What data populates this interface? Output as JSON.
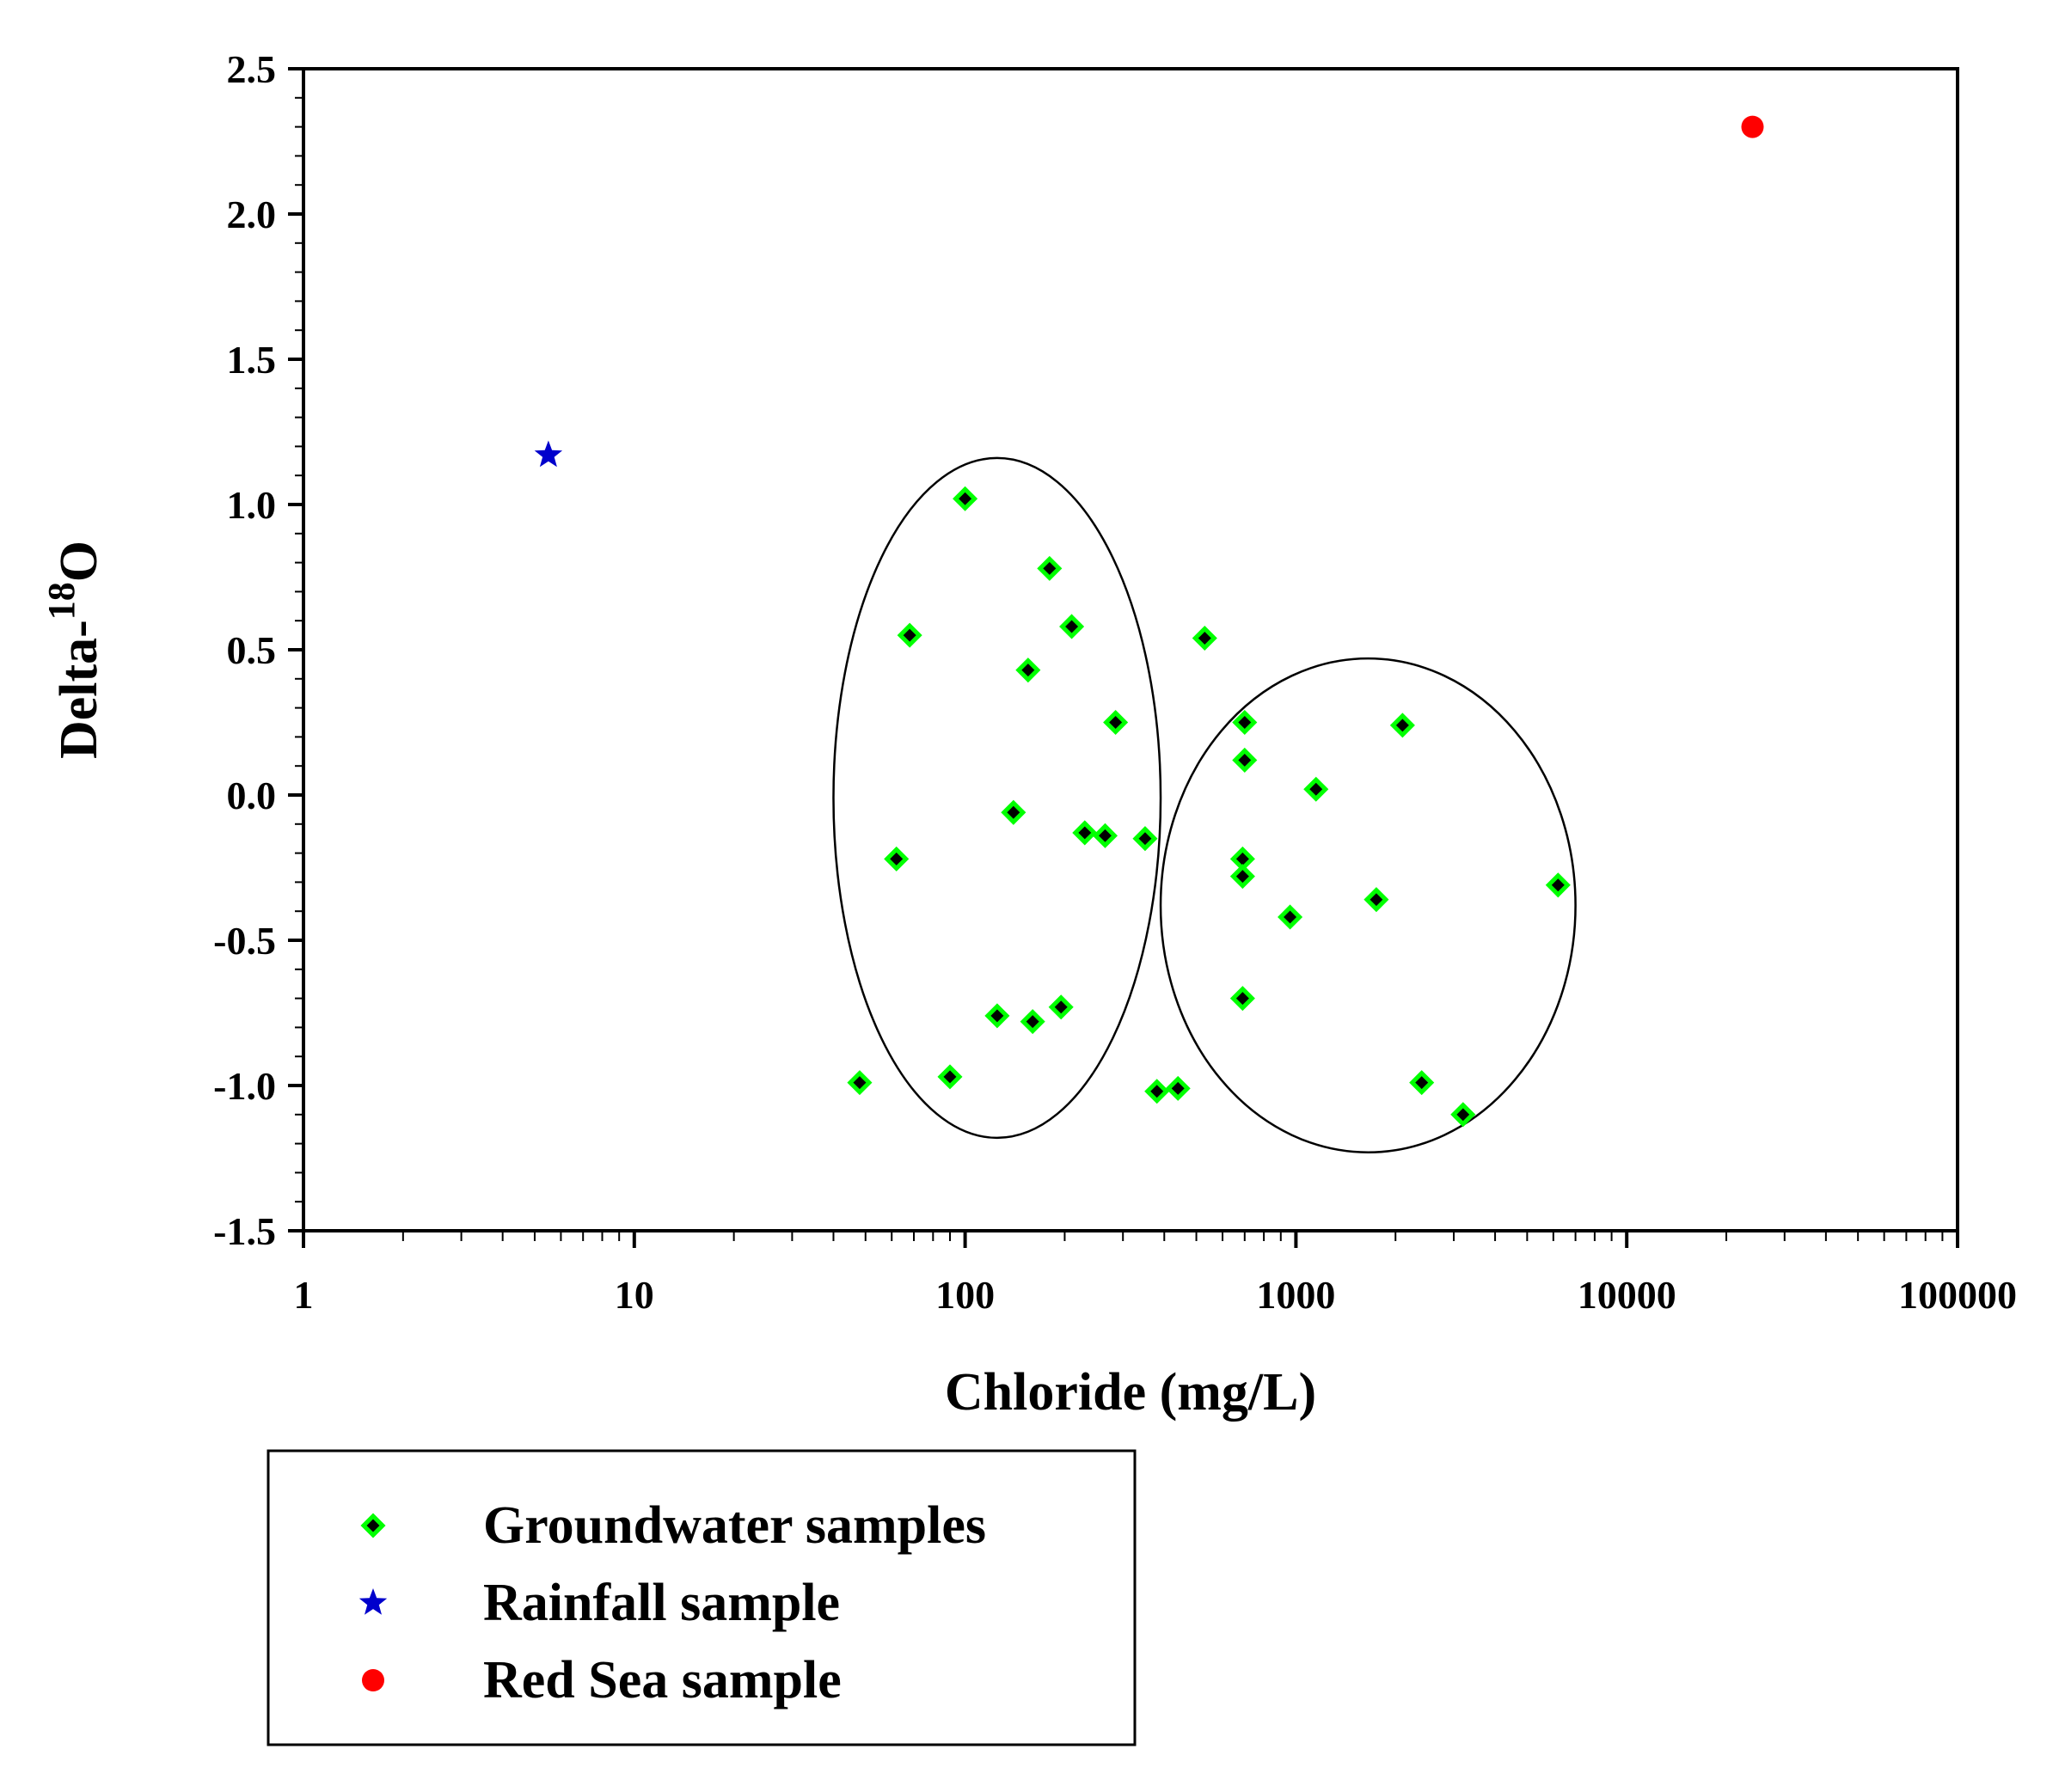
{
  "chart_data": {
    "type": "scatter",
    "title": "",
    "xlabel": "Chloride (mg/L)",
    "ylabel_main": "Delta-",
    "ylabel_sup": "18",
    "ylabel_end": "O",
    "xscale": "log",
    "xlim": [
      1,
      100000
    ],
    "ylim": [
      -1.5,
      2.5
    ],
    "x_ticks": [
      1,
      10,
      100,
      1000,
      10000,
      100000
    ],
    "x_tick_labels": [
      "1",
      "10",
      "100",
      "1000",
      "10000",
      "100000"
    ],
    "y_ticks": [
      -1.5,
      -1.0,
      -0.5,
      0.0,
      0.5,
      1.0,
      1.5,
      2.0,
      2.5
    ],
    "y_tick_labels": [
      "-1.5",
      "-1.0",
      "-0.5",
      "0.0",
      "0.5",
      "1.0",
      "1.5",
      "2.0",
      "2.5"
    ],
    "grid": false,
    "legend_position": "below",
    "series": [
      {
        "name": "Groundwater samples",
        "marker": "diamond",
        "color": "#00ff00",
        "points": [
          [
            100,
            1.02
          ],
          [
            180,
            0.78
          ],
          [
            68,
            0.55
          ],
          [
            210,
            0.58
          ],
          [
            155,
            0.43
          ],
          [
            530,
            0.54
          ],
          [
            285,
            0.25
          ],
          [
            700,
            0.25
          ],
          [
            2100,
            0.24
          ],
          [
            700,
            0.12
          ],
          [
            1150,
            0.02
          ],
          [
            140,
            -0.06
          ],
          [
            230,
            -0.13
          ],
          [
            265,
            -0.14
          ],
          [
            350,
            -0.15
          ],
          [
            62,
            -0.22
          ],
          [
            690,
            -0.22
          ],
          [
            690,
            -0.28
          ],
          [
            6200,
            -0.31
          ],
          [
            1750,
            -0.36
          ],
          [
            960,
            -0.42
          ],
          [
            690,
            -0.7
          ],
          [
            125,
            -0.76
          ],
          [
            160,
            -0.78
          ],
          [
            195,
            -0.73
          ],
          [
            48,
            -0.99
          ],
          [
            90,
            -0.97
          ],
          [
            380,
            -1.02
          ],
          [
            440,
            -1.01
          ],
          [
            2400,
            -0.99
          ],
          [
            3200,
            -1.1
          ]
        ]
      },
      {
        "name": "Rainfall sample",
        "marker": "star",
        "color": "#0000cc",
        "points": [
          [
            5.5,
            1.17
          ]
        ]
      },
      {
        "name": "Red Sea sample",
        "marker": "circle",
        "color": "#ff0000",
        "points": [
          [
            24000,
            2.3
          ]
        ]
      }
    ],
    "ellipses": [
      {
        "cx": 125,
        "cy": 0.0,
        "x_left": 40,
        "x_right": 390,
        "y_top": 1.16,
        "y_bottom": -1.18
      },
      {
        "cx": 1600,
        "cy": -0.36,
        "x_left": 390,
        "x_right": 7000,
        "y_top": 0.47,
        "y_bottom": -1.23
      }
    ]
  }
}
